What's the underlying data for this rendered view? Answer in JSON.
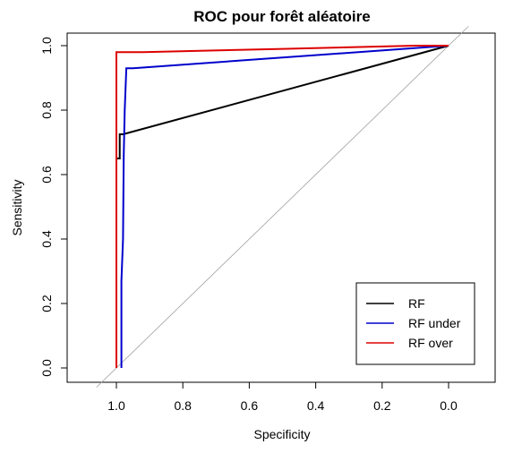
{
  "chart_data": {
    "type": "line",
    "title": "ROC pour forêt aléatoire",
    "xlabel": "Specificity",
    "ylabel": "Sensitivity",
    "xlim": [
      1.0,
      0.0
    ],
    "ylim": [
      0.0,
      1.0
    ],
    "x_reversed": true,
    "xticks": [
      "1.0",
      "0.8",
      "0.6",
      "0.4",
      "0.2",
      "0.0"
    ],
    "yticks": [
      "0.0",
      "0.2",
      "0.4",
      "0.6",
      "0.8",
      "1.0"
    ],
    "grid": false,
    "legend_position": "bottom-right",
    "reference_line": {
      "from": [
        1.0,
        0.0
      ],
      "to": [
        0.0,
        1.0
      ],
      "color": "#a0a0a0"
    },
    "series": [
      {
        "name": "RF",
        "color": "#000000",
        "points": [
          [
            1.0,
            0.0
          ],
          [
            1.0,
            0.65
          ],
          [
            0.99,
            0.65
          ],
          [
            0.99,
            0.725
          ],
          [
            0.98,
            0.725
          ],
          [
            0.0,
            1.0
          ]
        ]
      },
      {
        "name": "RF under",
        "color": "#0000cc",
        "points": [
          [
            0.985,
            0.0
          ],
          [
            0.985,
            0.27
          ],
          [
            0.98,
            0.4
          ],
          [
            0.978,
            0.66
          ],
          [
            0.975,
            0.8
          ],
          [
            0.97,
            0.93
          ],
          [
            0.95,
            0.93
          ],
          [
            0.0,
            1.0
          ]
        ]
      },
      {
        "name": "RF over",
        "color": "#dd0000",
        "points": [
          [
            1.0,
            0.0
          ],
          [
            1.0,
            0.98
          ],
          [
            0.92,
            0.98
          ],
          [
            0.5,
            0.99
          ],
          [
            0.1,
            1.0
          ],
          [
            0.0,
            1.0
          ]
        ]
      }
    ]
  }
}
